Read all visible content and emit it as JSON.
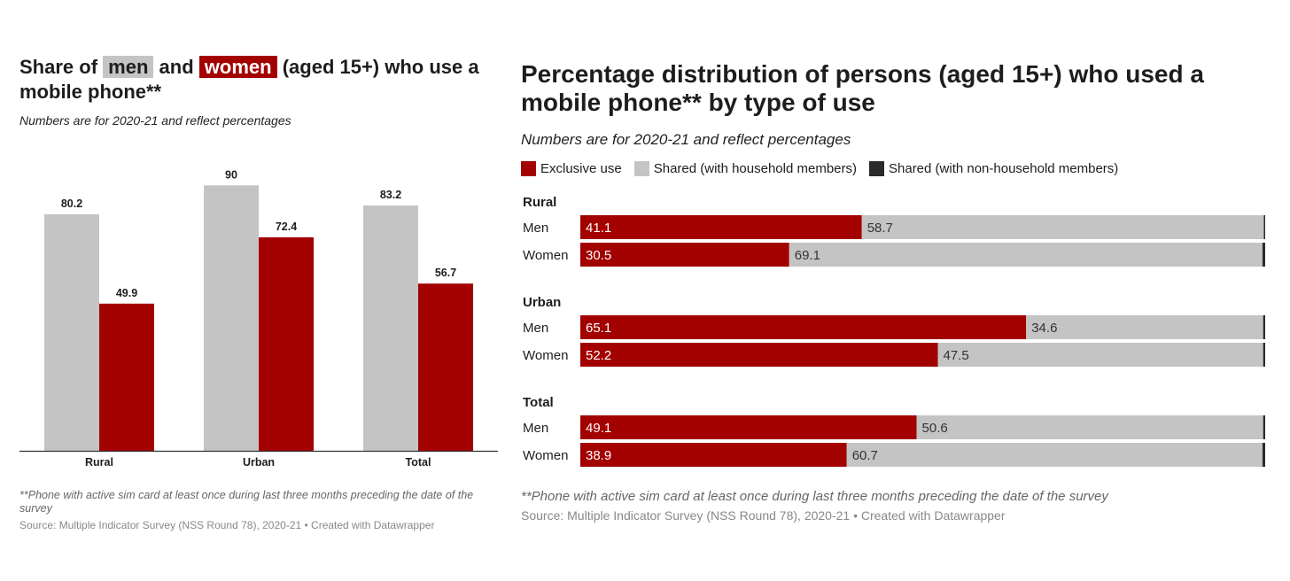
{
  "left": {
    "title_pre": "Share of",
    "title_men": "men",
    "title_and": "and",
    "title_women": "women",
    "title_post": "(aged 15+) who use a mobile phone**",
    "subtitle": "Numbers are for 2020-21 and reflect percentages",
    "footnote": "**Phone with active sim card at least once during last three months preceding the date of the survey",
    "source": "Source: Multiple Indicator Survey (NSS Round 78), 2020-21 • Created with Datawrapper"
  },
  "right": {
    "title": "Percentage distribution of persons (aged 15+) who used a mobile phone** by type of use",
    "subtitle": "Numbers are for 2020-21 and reflect percentages",
    "legend": [
      "Exclusive use",
      "Shared (with household members)",
      "Shared (with non-household members)"
    ],
    "footnote": "**Phone with active sim card at least once during last three months preceding the date of the survey",
    "source": "Source: Multiple Indicator Survey (NSS Round 78), 2020-21 • Created with Datawrapper"
  },
  "colors": {
    "men": "#c4c4c4",
    "women": "#a30000",
    "exclusive": "#a30000",
    "shared_household": "#c4c4c4",
    "shared_nonhousehold": "#2b2b2b"
  },
  "chart_data": [
    {
      "type": "bar",
      "categories": [
        "Rural",
        "Urban",
        "Total"
      ],
      "series": [
        {
          "name": "men",
          "values": [
            80.2,
            90,
            83.2
          ]
        },
        {
          "name": "women",
          "values": [
            49.9,
            72.4,
            56.7
          ]
        }
      ],
      "ylim": [
        0,
        100
      ],
      "grid": false
    },
    {
      "type": "bar",
      "orientation": "horizontal-stacked",
      "groups": [
        {
          "label": "Rural",
          "rows": [
            {
              "label": "Men",
              "values": [
                41.1,
                58.7,
                0.2
              ]
            },
            {
              "label": "Women",
              "values": [
                30.5,
                69.1,
                0.4
              ]
            }
          ]
        },
        {
          "label": "Urban",
          "rows": [
            {
              "label": "Men",
              "values": [
                65.1,
                34.6,
                0.3
              ]
            },
            {
              "label": "Women",
              "values": [
                52.2,
                47.5,
                0.3
              ]
            }
          ]
        },
        {
          "label": "Total",
          "rows": [
            {
              "label": "Men",
              "values": [
                49.1,
                50.6,
                0.3
              ]
            },
            {
              "label": "Women",
              "values": [
                38.9,
                60.7,
                0.4
              ]
            }
          ]
        }
      ],
      "series": [
        {
          "name": "Exclusive use"
        },
        {
          "name": "Shared (with household members)"
        },
        {
          "name": "Shared (with non-household members)"
        }
      ],
      "xlim": [
        0,
        100
      ],
      "legend": "top-left"
    }
  ]
}
